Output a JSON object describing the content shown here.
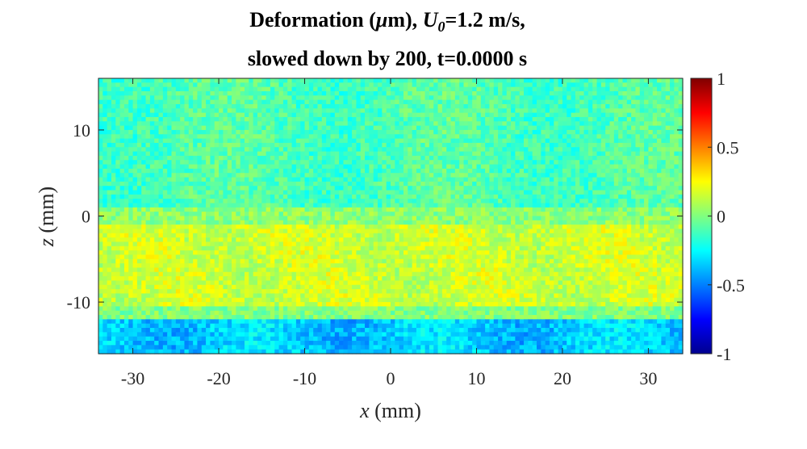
{
  "title": {
    "line1_prefix": "Deformation (",
    "line1_mu": "μ",
    "line1_mid": "m), ",
    "line1_sym": "U",
    "line1_sub": "0",
    "line1_suffix": "=1.2 m/s,",
    "line2": "slowed down by 200, t=0.0000 s"
  },
  "chart_data": {
    "type": "heatmap",
    "title": "Deformation (μm), U0=1.2 m/s, slowed down by 200, t=0.0000 s",
    "xlabel_var": "x",
    "xlabel_unit": " (mm)",
    "ylabel_var": "z",
    "ylabel_unit": " (mm)",
    "xlim": [
      -34,
      34
    ],
    "ylim": [
      -16,
      16
    ],
    "xticks": [
      -30,
      -20,
      -10,
      0,
      10,
      20,
      30
    ],
    "yticks": [
      -10,
      0,
      10
    ],
    "colorbar": {
      "colormap": "jet",
      "clim": [
        -1,
        1
      ],
      "ticks": [
        -1,
        -0.5,
        0,
        0.5,
        1
      ],
      "tick_labels": [
        "-1",
        "-0.5",
        "0",
        "0.5",
        "1"
      ]
    },
    "field_description": "Noisy deformation field, values mostly between -0.4 and 0.25",
    "bands": [
      {
        "z_range": [
          0,
          16
        ],
        "approx_value": -0.1
      },
      {
        "z_range": [
          -10,
          0
        ],
        "approx_value": 0.15
      },
      {
        "z_range": [
          -16,
          -11
        ],
        "approx_value": -0.35
      }
    ]
  },
  "colors": {
    "axis": "#262626",
    "background": "#ffffff"
  }
}
